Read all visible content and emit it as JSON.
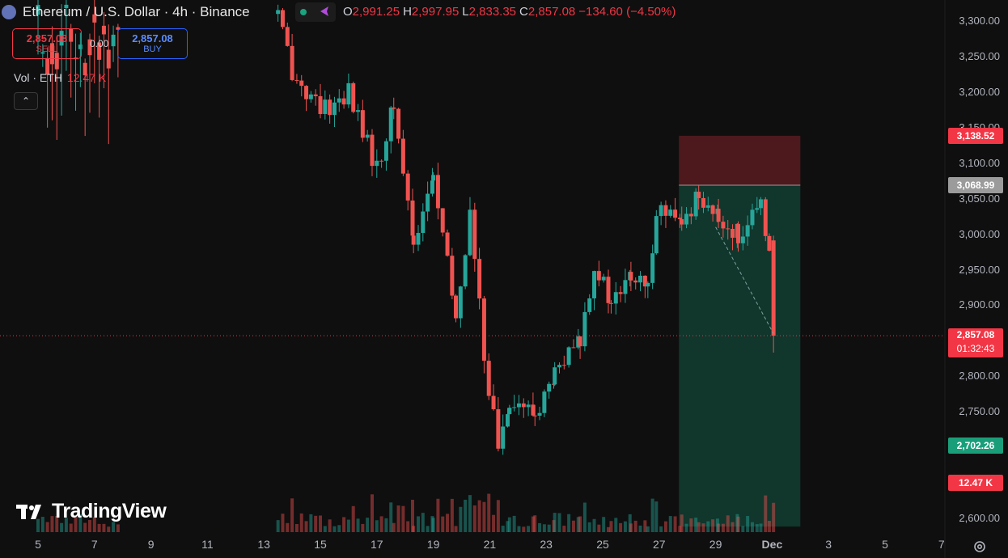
{
  "header": {
    "symbol": "Ethereum / U.S. Dollar · 4h · Binance",
    "ohlc": [
      {
        "k": "O",
        "v": "2,991.25"
      },
      {
        "k": "H",
        "v": "2,997.95"
      },
      {
        "k": "L",
        "v": "2,833.35"
      },
      {
        "k": "C",
        "v": "2,857.08"
      },
      {
        "k": "",
        "v": "−134.60 (−4.50%)"
      }
    ]
  },
  "trade": {
    "sell_price": "2,857.08",
    "sell_label": "SELL",
    "spread": "0.00",
    "buy_price": "2,857.08",
    "buy_label": "BUY"
  },
  "volume_legend": {
    "label": "Vol · ETH",
    "value": "12.47 K"
  },
  "watermark": "TradingView",
  "price_tags": [
    {
      "text": "3,138.52",
      "price": 3138.52,
      "color": "#f23645"
    },
    {
      "text": "3,068.99",
      "price": 3068.99,
      "color": "#9b9b9b"
    },
    {
      "text": "2,857.08",
      "price": 2857.08,
      "color": "#f23645",
      "sub": "01:32:43"
    },
    {
      "text": "2,702.26",
      "price": 2702.26,
      "color": "#1a9e7a"
    },
    {
      "text": "12.47 K",
      "volume": 12.47,
      "color": "#f23645"
    }
  ],
  "colors": {
    "up": "#26a69a",
    "down": "#ef5350",
    "background": "#0f0f0f"
  },
  "chart_data": {
    "type": "candlestick",
    "title": "Ethereum / U.S. Dollar · 4h · Binance",
    "timeframe": "4h",
    "ylim": [
      2580,
      3320
    ],
    "y_ticks": [
      2600,
      2650,
      2700,
      2750,
      2800,
      2850,
      2900,
      2950,
      3000,
      3050,
      3100,
      3150,
      3200,
      3250,
      3300
    ],
    "x_ticks": [
      "5",
      "7",
      "9",
      "11",
      "13",
      "15",
      "17",
      "19",
      "21",
      "23",
      "25",
      "27",
      "29",
      "Dec",
      "3",
      "5",
      "7"
    ],
    "x_range_days": [
      4.6,
      37.5
    ],
    "last_price": 2857.08,
    "position": {
      "type": "short",
      "entry": 3068.99,
      "stop": 3138.52,
      "target": 2702.26,
      "start_day": 27.7,
      "end_day": 32.0
    },
    "key_points": [
      {
        "day": 13.5,
        "price": 3310
      },
      {
        "day": 14.0,
        "price": 3230
      },
      {
        "day": 15.0,
        "price": 3170
      },
      {
        "day": 16.0,
        "price": 3200
      },
      {
        "day": 17.0,
        "price": 3090
      },
      {
        "day": 17.6,
        "price": 3180
      },
      {
        "day": 18.3,
        "price": 2990
      },
      {
        "day": 19.0,
        "price": 3080
      },
      {
        "day": 19.8,
        "price": 2880
      },
      {
        "day": 20.3,
        "price": 3030
      },
      {
        "day": 20.8,
        "price": 2830
      },
      {
        "day": 21.3,
        "price": 2700
      },
      {
        "day": 21.7,
        "price": 2770
      },
      {
        "day": 22.6,
        "price": 2745
      },
      {
        "day": 23.3,
        "price": 2800
      },
      {
        "day": 24.2,
        "price": 2850
      },
      {
        "day": 24.7,
        "price": 2960
      },
      {
        "day": 25.3,
        "price": 2900
      },
      {
        "day": 26.0,
        "price": 2940
      },
      {
        "day": 26.6,
        "price": 2920
      },
      {
        "day": 26.9,
        "price": 3040
      },
      {
        "day": 27.8,
        "price": 3010
      },
      {
        "day": 28.4,
        "price": 3060
      },
      {
        "day": 29.1,
        "price": 3020
      },
      {
        "day": 29.8,
        "price": 3000
      },
      {
        "day": 30.6,
        "price": 3035
      },
      {
        "day": 30.9,
        "price": 2990
      },
      {
        "day": 31.05,
        "price": 2857
      }
    ],
    "volume_last": 12.47
  }
}
